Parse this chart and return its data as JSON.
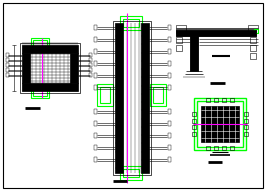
{
  "bg_color": "#ffffff",
  "green": "#00ff00",
  "magenta": "#ff00ff",
  "black": "#000000",
  "gray": "#888888",
  "fig_width": 2.66,
  "fig_height": 1.91,
  "dpi": 100
}
